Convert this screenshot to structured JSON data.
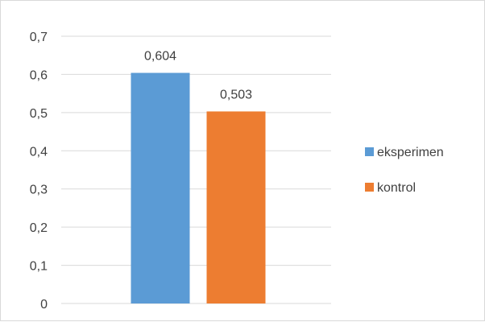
{
  "chart_data": {
    "type": "bar",
    "title": "",
    "xlabel": "",
    "ylabel": "",
    "categories": [
      ""
    ],
    "series": [
      {
        "name": "eksperimen",
        "values": [
          0.604
        ],
        "color": "#5b9bd5",
        "data_label": "0,604"
      },
      {
        "name": "kontrol",
        "values": [
          0.503
        ],
        "color": "#ed7d31",
        "data_label": "0,503"
      }
    ],
    "ylim": [
      0,
      0.7
    ],
    "yticks": [
      0,
      0.1,
      0.2,
      0.3,
      0.4,
      0.5,
      0.6,
      0.7
    ],
    "ytick_labels": [
      "0",
      "0,1",
      "0,2",
      "0,3",
      "0,4",
      "0,5",
      "0,6",
      "0,7"
    ],
    "grid": true,
    "legend": {
      "position": "right",
      "entries": [
        "eksperimen",
        "kontrol"
      ]
    }
  }
}
